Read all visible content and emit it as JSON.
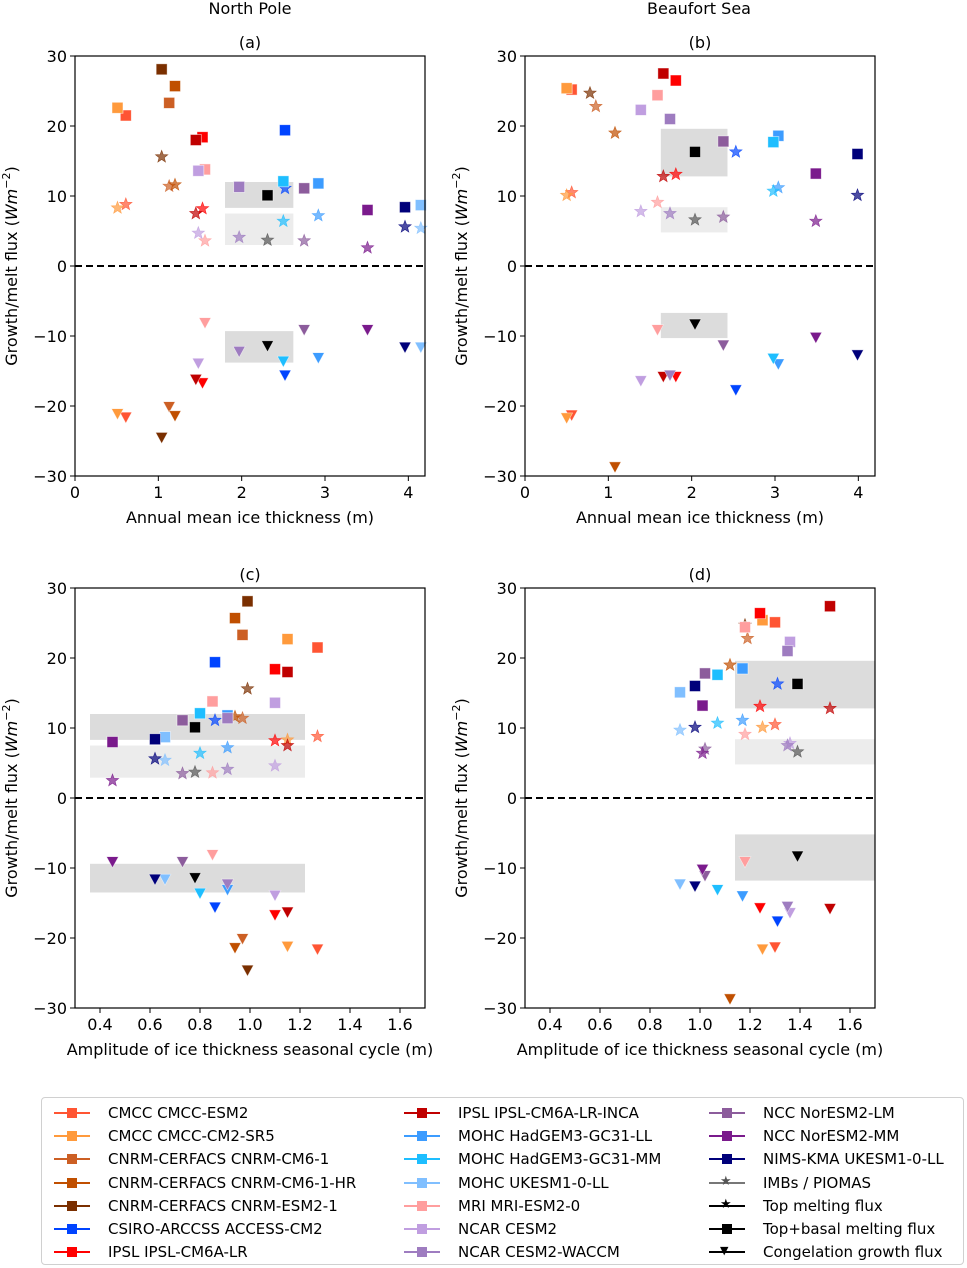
{
  "column_titles": [
    "North Pole",
    "Beaufort Sea"
  ],
  "models": [
    {
      "name": "CMCC CMCC-ESM2",
      "color": "#ff5533"
    },
    {
      "name": "CMCC CMCC-CM2-SR5",
      "color": "#ff9a3c"
    },
    {
      "name": "CNRM-CERFACS CNRM-CM6-1",
      "color": "#cc5f24"
    },
    {
      "name": "CNRM-CERFACS CNRM-CM6-1-HR",
      "color": "#c04f00"
    },
    {
      "name": "CNRM-CERFACS CNRM-ESM2-1",
      "color": "#7a2f00"
    },
    {
      "name": "CSIRO-ARCCSS ACCESS-CM2",
      "color": "#0044ff"
    },
    {
      "name": "IPSL IPSL-CM6A-LR",
      "color": "#ff0000"
    },
    {
      "name": "IPSL IPSL-CM6A-LR-INCA",
      "color": "#c00000"
    },
    {
      "name": "MOHC HadGEM3-GC31-LL",
      "color": "#3c9cff"
    },
    {
      "name": "MOHC HadGEM3-GC31-MM",
      "color": "#1ebeff"
    },
    {
      "name": "MOHC UKESM1-0-LL",
      "color": "#80bfff"
    },
    {
      "name": "MRI MRI-ESM2-0",
      "color": "#ff9e9e"
    },
    {
      "name": "NCAR CESM2",
      "color": "#c09ee0"
    },
    {
      "name": "NCAR CESM2-WACCM",
      "color": "#9e7cc0"
    },
    {
      "name": "NCC NorESM2-LM",
      "color": "#8c5c9c"
    },
    {
      "name": "NCC NorESM2-MM",
      "color": "#7a1a8c"
    },
    {
      "name": "NIMS-KMA UKESM1-0-LL",
      "color": "#00007a"
    },
    {
      "name": "IMBs / PIOMAS",
      "color": "#555555"
    }
  ],
  "legend": {
    "columns": [
      [
        "CMCC CMCC-ESM2",
        "CMCC CMCC-CM2-SR5",
        "CNRM-CERFACS CNRM-CM6-1",
        "CNRM-CERFACS CNRM-CM6-1-HR",
        "CNRM-CERFACS CNRM-ESM2-1",
        "CSIRO-ARCCSS ACCESS-CM2",
        "IPSL IPSL-CM6A-LR"
      ],
      [
        "IPSL IPSL-CM6A-LR-INCA",
        "MOHC HadGEM3-GC31-LL",
        "MOHC HadGEM3-GC31-MM",
        "MOHC UKESM1-0-LL",
        "MRI MRI-ESM2-0",
        "NCAR CESM2",
        "NCAR CESM2-WACCM"
      ],
      [
        "NCC NorESM2-LM",
        "NCC NorESM2-MM",
        "NIMS-KMA UKESM1-0-LL",
        "IMBs / PIOMAS",
        "Top melting flux",
        "Top+basal melting flux",
        "Congelation growth flux"
      ]
    ],
    "marker_types": [
      {
        "label": "Top melting flux",
        "marker": "star"
      },
      {
        "label": "Top+basal melting flux",
        "marker": "square"
      },
      {
        "label": "Congelation growth flux",
        "marker": "triangle-down"
      }
    ]
  },
  "chart_data": [
    {
      "id": "a",
      "type": "scatter",
      "title": "(a)",
      "region": "North Pole",
      "xlabel": "Annual mean ice thickness (m)",
      "ylabel": "Growth/melt flux (Wm^-2)",
      "xlim": [
        0,
        4.2
      ],
      "ylim": [
        -30,
        30
      ],
      "xticks": [
        0,
        1,
        2,
        3,
        4
      ],
      "xtick_labels": [
        "0",
        "1",
        "2",
        "3",
        "4"
      ],
      "yticks": [
        -30,
        -20,
        -10,
        0,
        10,
        20,
        30
      ],
      "ytick_labels": [
        "−30",
        "−20",
        "−10",
        "0",
        "10",
        "20",
        "30"
      ],
      "obs_ranges": {
        "topbasal": {
          "x": [
            1.8,
            2.62
          ],
          "y": [
            8.3,
            12.0
          ]
        },
        "top": {
          "x": [
            1.8,
            2.62
          ],
          "y": [
            3.0,
            7.5
          ]
        },
        "congelation": {
          "x": [
            1.8,
            2.62
          ],
          "y": [
            -13.8,
            -9.3
          ]
        }
      },
      "series": [
        {
          "name": "CMCC CMCC-ESM2",
          "x": 0.61,
          "top": 8.8,
          "topbasal": 21.5,
          "congelation": -21.6
        },
        {
          "name": "CMCC CMCC-CM2-SR5",
          "x": 0.51,
          "top": 8.3,
          "topbasal": 22.6,
          "congelation": -21.1
        },
        {
          "name": "CNRM-CERFACS CNRM-CM6-1",
          "x": 1.13,
          "top": 11.4,
          "topbasal": 23.3,
          "congelation": -20.1
        },
        {
          "name": "CNRM-CERFACS CNRM-CM6-1-HR",
          "x": 1.2,
          "top": 11.6,
          "topbasal": 25.7,
          "congelation": -21.4
        },
        {
          "name": "CNRM-CERFACS CNRM-ESM2-1",
          "x": 1.04,
          "top": 15.6,
          "topbasal": 28.1,
          "congelation": -24.5
        },
        {
          "name": "CSIRO-ARCCSS ACCESS-CM2",
          "x": 2.52,
          "top": 11.1,
          "topbasal": 19.4,
          "congelation": -15.6
        },
        {
          "name": "IPSL IPSL-CM6A-LR",
          "x": 1.53,
          "top": 8.2,
          "topbasal": 18.4,
          "congelation": -16.7
        },
        {
          "name": "IPSL IPSL-CM6A-LR-INCA",
          "x": 1.45,
          "top": 7.5,
          "topbasal": 18.0,
          "congelation": -16.2
        },
        {
          "name": "MOHC HadGEM3-GC31-LL",
          "x": 2.92,
          "top": 7.2,
          "topbasal": 11.8,
          "congelation": -13.1
        },
        {
          "name": "MOHC HadGEM3-GC31-MM",
          "x": 2.5,
          "top": 6.4,
          "topbasal": 12.1,
          "congelation": -13.6
        },
        {
          "name": "MOHC UKESM1-0-LL",
          "x": 4.15,
          "top": 5.4,
          "topbasal": 8.7,
          "congelation": -11.6
        },
        {
          "name": "MRI MRI-ESM2-0",
          "x": 1.56,
          "top": 3.6,
          "topbasal": 13.8,
          "congelation": -8.1
        },
        {
          "name": "NCAR CESM2",
          "x": 1.48,
          "top": 4.7,
          "topbasal": 13.6,
          "congelation": -13.9
        },
        {
          "name": "NCAR CESM2-WACCM",
          "x": 1.97,
          "top": 4.1,
          "topbasal": 11.3,
          "congelation": -12.2
        },
        {
          "name": "NCC NorESM2-LM",
          "x": 2.75,
          "top": 3.6,
          "topbasal": 11.1,
          "congelation": -9.1
        },
        {
          "name": "NCC NorESM2-MM",
          "x": 3.51,
          "top": 2.6,
          "topbasal": 8.0,
          "congelation": -9.1
        },
        {
          "name": "NIMS-KMA UKESM1-0-LL",
          "x": 3.96,
          "top": 5.6,
          "topbasal": 8.4,
          "congelation": -11.6
        },
        {
          "name": "IMBs / PIOMAS",
          "x": 2.31,
          "top": 3.7,
          "topbasal": 10.1,
          "congelation": -11.4
        }
      ]
    },
    {
      "id": "b",
      "type": "scatter",
      "title": "(b)",
      "region": "Beaufort Sea",
      "xlabel": "Annual mean ice thickness (m)",
      "ylabel": "Growth/melt flux (Wm^-2)",
      "xlim": [
        0,
        4.2
      ],
      "ylim": [
        -30,
        30
      ],
      "xticks": [
        0,
        1,
        2,
        3,
        4
      ],
      "xtick_labels": [
        "0",
        "1",
        "2",
        "3",
        "4"
      ],
      "yticks": [
        -30,
        -20,
        -10,
        0,
        10,
        20,
        30
      ],
      "ytick_labels": [
        "−30",
        "−20",
        "−10",
        "0",
        "10",
        "20",
        "30"
      ],
      "obs_ranges": {
        "topbasal": {
          "x": [
            1.63,
            2.43
          ],
          "y": [
            12.8,
            19.6
          ]
        },
        "top": {
          "x": [
            1.63,
            2.43
          ],
          "y": [
            4.8,
            8.4
          ]
        },
        "congelation": {
          "x": [
            1.63,
            2.43
          ],
          "y": [
            -10.3,
            -6.7
          ]
        }
      },
      "series": [
        {
          "name": "CMCC CMCC-ESM2",
          "x": 0.56,
          "top": 10.5,
          "topbasal": 25.2,
          "congelation": -21.3
        },
        {
          "name": "CMCC CMCC-CM2-SR5",
          "x": 0.5,
          "top": 10.1,
          "topbasal": 25.4,
          "congelation": -21.7
        },
        {
          "name": "CNRM-CERFACS CNRM-CM6-1",
          "x": 0.85,
          "top": 22.8,
          "topbasal": null,
          "congelation": null
        },
        {
          "name": "CNRM-CERFACS CNRM-CM6-1-HR",
          "x": 1.08,
          "top": 19.0,
          "topbasal": null,
          "congelation": -28.7
        },
        {
          "name": "CNRM-CERFACS CNRM-ESM2-1",
          "x": 0.78,
          "top": 24.7,
          "topbasal": null,
          "congelation": null
        },
        {
          "name": "CSIRO-ARCCSS ACCESS-CM2",
          "x": 2.53,
          "top": 16.3,
          "topbasal": null,
          "congelation": -17.7
        },
        {
          "name": "IPSL IPSL-CM6A-LR",
          "x": 1.81,
          "top": 13.1,
          "topbasal": 26.5,
          "congelation": -15.8
        },
        {
          "name": "IPSL IPSL-CM6A-LR-INCA",
          "x": 1.66,
          "top": 12.8,
          "topbasal": 27.5,
          "congelation": -15.8
        },
        {
          "name": "MOHC HadGEM3-GC31-LL",
          "x": 3.04,
          "top": 11.2,
          "topbasal": 18.6,
          "congelation": -14.0
        },
        {
          "name": "MOHC HadGEM3-GC31-MM",
          "x": 2.98,
          "top": 10.7,
          "topbasal": 17.7,
          "congelation": -13.2
        },
        {
          "name": "MOHC UKESM1-0-LL",
          "x": null,
          "top": null,
          "topbasal": null,
          "congelation": null
        },
        {
          "name": "MRI MRI-ESM2-0",
          "x": 1.59,
          "top": 9.1,
          "topbasal": 24.4,
          "congelation": -9.1
        },
        {
          "name": "NCAR CESM2",
          "x": 1.39,
          "top": 7.8,
          "topbasal": 22.3,
          "congelation": -16.4
        },
        {
          "name": "NCAR CESM2-WACCM",
          "x": 1.74,
          "top": 7.5,
          "topbasal": 21.0,
          "congelation": -15.6
        },
        {
          "name": "NCC NorESM2-LM",
          "x": 2.38,
          "top": 7.0,
          "topbasal": 17.8,
          "congelation": -11.3
        },
        {
          "name": "NCC NorESM2-MM",
          "x": 3.49,
          "top": 6.4,
          "topbasal": 13.2,
          "congelation": -10.2
        },
        {
          "name": "NIMS-KMA UKESM1-0-LL",
          "x": 3.99,
          "top": 10.1,
          "topbasal": 16.0,
          "congelation": -12.7
        },
        {
          "name": "IMBs / PIOMAS",
          "x": 2.04,
          "top": 6.6,
          "topbasal": 16.3,
          "congelation": -8.3
        }
      ]
    },
    {
      "id": "c",
      "type": "scatter",
      "title": "(c)",
      "region": "North Pole",
      "xlabel": "Amplitude of ice thickness seasonal cycle (m)",
      "ylabel": "Growth/melt flux (Wm^-2)",
      "xlim": [
        0.3,
        1.7
      ],
      "ylim": [
        -30,
        30
      ],
      "xticks": [
        0.4,
        0.6,
        0.8,
        1.0,
        1.2,
        1.4,
        1.6
      ],
      "xtick_labels": [
        "0.4",
        "0.6",
        "0.8",
        "1.0",
        "1.2",
        "1.4",
        "1.6"
      ],
      "yticks": [
        -30,
        -20,
        -10,
        0,
        10,
        20,
        30
      ],
      "ytick_labels": [
        "−30",
        "−20",
        "−10",
        "0",
        "10",
        "20",
        "30"
      ],
      "obs_ranges": {
        "topbasal": {
          "x": [
            0.36,
            1.22
          ],
          "y": [
            8.3,
            12.0
          ]
        },
        "top": {
          "x": [
            0.36,
            1.22
          ],
          "y": [
            2.9,
            7.5
          ]
        },
        "congelation": {
          "x": [
            0.36,
            1.22
          ],
          "y": [
            -13.5,
            -9.4
          ]
        }
      },
      "series": [
        {
          "name": "CMCC CMCC-ESM2",
          "x": 1.27,
          "top": 8.8,
          "topbasal": 21.5,
          "congelation": -21.6
        },
        {
          "name": "CMCC CMCC-CM2-SR5",
          "x": 1.15,
          "top": 8.3,
          "topbasal": 22.7,
          "congelation": -21.2
        },
        {
          "name": "CNRM-CERFACS CNRM-CM6-1",
          "x": 0.97,
          "top": 11.4,
          "topbasal": 23.3,
          "congelation": -20.1
        },
        {
          "name": "CNRM-CERFACS CNRM-CM6-1-HR",
          "x": 0.94,
          "top": 11.6,
          "topbasal": 25.7,
          "congelation": -21.4
        },
        {
          "name": "CNRM-CERFACS CNRM-ESM2-1",
          "x": 0.99,
          "top": 15.6,
          "topbasal": 28.1,
          "congelation": -24.6
        },
        {
          "name": "CSIRO-ARCCSS ACCESS-CM2",
          "x": 0.86,
          "top": 11.1,
          "topbasal": 19.4,
          "congelation": -15.6
        },
        {
          "name": "IPSL IPSL-CM6A-LR",
          "x": 1.1,
          "top": 8.2,
          "topbasal": 18.4,
          "congelation": -16.7
        },
        {
          "name": "IPSL IPSL-CM6A-LR-INCA",
          "x": 1.15,
          "top": 7.5,
          "topbasal": 18.0,
          "congelation": -16.3
        },
        {
          "name": "MOHC HadGEM3-GC31-LL",
          "x": 0.91,
          "top": 7.2,
          "topbasal": 11.8,
          "congelation": -13.1
        },
        {
          "name": "MOHC HadGEM3-GC31-MM",
          "x": 0.8,
          "top": 6.4,
          "topbasal": 12.1,
          "congelation": -13.6
        },
        {
          "name": "MOHC UKESM1-0-LL",
          "x": 0.66,
          "top": 5.4,
          "topbasal": 8.7,
          "congelation": -11.6
        },
        {
          "name": "MRI MRI-ESM2-0",
          "x": 0.85,
          "top": 3.6,
          "topbasal": 13.8,
          "congelation": -8.1
        },
        {
          "name": "NCAR CESM2",
          "x": 1.1,
          "top": 4.6,
          "topbasal": 13.6,
          "congelation": -13.9
        },
        {
          "name": "NCAR CESM2-WACCM",
          "x": 0.91,
          "top": 4.1,
          "topbasal": 11.4,
          "congelation": -12.3
        },
        {
          "name": "NCC NorESM2-LM",
          "x": 0.73,
          "top": 3.5,
          "topbasal": 11.1,
          "congelation": -9.1
        },
        {
          "name": "NCC NorESM2-MM",
          "x": 0.45,
          "top": 2.5,
          "topbasal": 8.0,
          "congelation": -9.1
        },
        {
          "name": "NIMS-KMA UKESM1-0-LL",
          "x": 0.62,
          "top": 5.6,
          "topbasal": 8.4,
          "congelation": -11.6
        },
        {
          "name": "IMBs / PIOMAS",
          "x": 0.78,
          "top": 3.7,
          "topbasal": 10.1,
          "congelation": -11.4
        }
      ]
    },
    {
      "id": "d",
      "type": "scatter",
      "title": "(d)",
      "region": "Beaufort Sea",
      "xlabel": "Amplitude of ice thickness seasonal cycle (m)",
      "ylabel": "Growth/melt flux (Wm^-2)",
      "xlim": [
        0.3,
        1.7
      ],
      "ylim": [
        -30,
        30
      ],
      "xticks": [
        0.4,
        0.6,
        0.8,
        1.0,
        1.2,
        1.4,
        1.6
      ],
      "xtick_labels": [
        "0.4",
        "0.6",
        "0.8",
        "1.0",
        "1.2",
        "1.4",
        "1.6"
      ],
      "yticks": [
        -30,
        -20,
        -10,
        0,
        10,
        20,
        30
      ],
      "ytick_labels": [
        "−30",
        "−20",
        "−10",
        "0",
        "10",
        "20",
        "30"
      ],
      "obs_ranges": {
        "topbasal": {
          "x": [
            1.14,
            1.7
          ],
          "y": [
            12.8,
            19.6
          ]
        },
        "top": {
          "x": [
            1.14,
            1.7
          ],
          "y": [
            4.8,
            8.4
          ]
        },
        "congelation": {
          "x": [
            1.14,
            1.7
          ],
          "y": [
            -11.8,
            -5.2
          ]
        }
      },
      "series": [
        {
          "name": "CMCC CMCC-ESM2",
          "x": 1.3,
          "top": 10.5,
          "topbasal": 25.1,
          "congelation": -21.3
        },
        {
          "name": "CMCC CMCC-CM2-SR5",
          "x": 1.25,
          "top": 10.1,
          "topbasal": 25.4,
          "congelation": -21.6
        },
        {
          "name": "CNRM-CERFACS CNRM-CM6-1",
          "x": 1.19,
          "top": 22.8,
          "topbasal": null,
          "congelation": null
        },
        {
          "name": "CNRM-CERFACS CNRM-CM6-1-HR",
          "x": 1.12,
          "top": 19.0,
          "topbasal": null,
          "congelation": -28.7
        },
        {
          "name": "CNRM-CERFACS CNRM-ESM2-1",
          "x": 1.18,
          "top": 24.7,
          "topbasal": null,
          "congelation": null
        },
        {
          "name": "CSIRO-ARCCSS ACCESS-CM2",
          "x": 1.31,
          "top": 16.3,
          "topbasal": null,
          "congelation": -17.6
        },
        {
          "name": "IPSL IPSL-CM6A-LR",
          "x": 1.24,
          "top": 13.1,
          "topbasal": 26.4,
          "congelation": -15.7
        },
        {
          "name": "IPSL IPSL-CM6A-LR-INCA",
          "x": 1.52,
          "top": 12.8,
          "topbasal": 27.4,
          "congelation": -15.8
        },
        {
          "name": "MOHC HadGEM3-GC31-LL",
          "x": 1.17,
          "top": 11.1,
          "topbasal": 18.5,
          "congelation": -14.0
        },
        {
          "name": "MOHC HadGEM3-GC31-MM",
          "x": 1.07,
          "top": 10.7,
          "topbasal": 17.6,
          "congelation": -13.1
        },
        {
          "name": "MOHC UKESM1-0-LL",
          "x": 0.92,
          "top": 9.7,
          "topbasal": 15.1,
          "congelation": -12.3
        },
        {
          "name": "MRI MRI-ESM2-0",
          "x": 1.18,
          "top": 9.1,
          "topbasal": 24.4,
          "congelation": -9.1
        },
        {
          "name": "NCAR CESM2",
          "x": 1.36,
          "top": 7.8,
          "topbasal": 22.3,
          "congelation": -16.4
        },
        {
          "name": "NCAR CESM2-WACCM",
          "x": 1.35,
          "top": 7.5,
          "topbasal": 21.0,
          "congelation": -15.5
        },
        {
          "name": "NCC NorESM2-LM",
          "x": 1.02,
          "top": 7.0,
          "topbasal": 17.8,
          "congelation": -11.1
        },
        {
          "name": "NCC NorESM2-MM",
          "x": 1.01,
          "top": 6.4,
          "topbasal": 13.2,
          "congelation": -10.2
        },
        {
          "name": "NIMS-KMA UKESM1-0-LL",
          "x": 0.98,
          "top": 10.1,
          "topbasal": 16.0,
          "congelation": -12.6
        },
        {
          "name": "IMBs / PIOMAS",
          "x": 1.39,
          "top": 6.6,
          "topbasal": 16.3,
          "congelation": -8.3
        }
      ]
    }
  ]
}
